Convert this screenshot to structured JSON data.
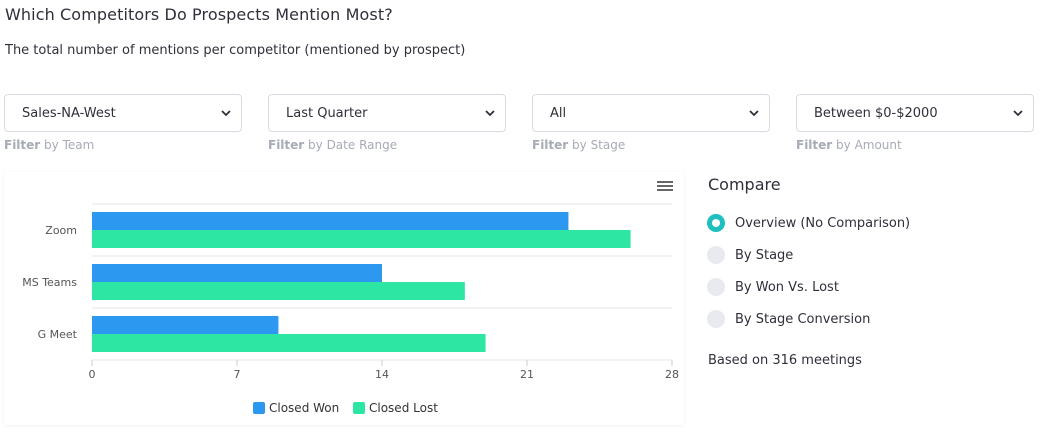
{
  "page": {
    "title": "Which Competitors Do Prospects Mention Most?",
    "subtitle": "The total number of mentions per competitor (mentioned by prospect)"
  },
  "filters": [
    {
      "value": "Sales-NA-West",
      "label_bold": "Filter",
      "label_rest": " by Team"
    },
    {
      "value": "Last Quarter",
      "label_bold": "Filter",
      "label_rest": " by Date Range"
    },
    {
      "value": "All",
      "label_bold": "Filter",
      "label_rest": " by Stage"
    },
    {
      "value": "Between $0-$2000",
      "label_bold": "Filter",
      "label_rest": " by Amount"
    }
  ],
  "compare": {
    "title": "Compare",
    "options": [
      {
        "label": "Overview (No Comparison)",
        "selected": true
      },
      {
        "label": "By Stage",
        "selected": false
      },
      {
        "label": "By Won Vs. Lost",
        "selected": false
      },
      {
        "label": "By Stage Conversion",
        "selected": false
      }
    ],
    "note": "Based on 316 meetings"
  },
  "colors": {
    "closed_won": "#2c98f0",
    "closed_lost": "#2de6a4",
    "accent": "#1fbfbf"
  },
  "chart_data": {
    "type": "bar",
    "orientation": "horizontal",
    "categories": [
      "Zoom",
      "MS Teams",
      "G Meet"
    ],
    "series": [
      {
        "name": "Closed Won",
        "values": [
          23,
          14,
          9
        ]
      },
      {
        "name": "Closed Lost",
        "values": [
          26,
          18,
          19
        ]
      }
    ],
    "xticks": [
      0,
      7,
      14,
      21,
      28
    ],
    "xlim": [
      0,
      28
    ],
    "grid": true,
    "legend": "bottom-center",
    "title": "",
    "xlabel": "",
    "ylabel": ""
  }
}
